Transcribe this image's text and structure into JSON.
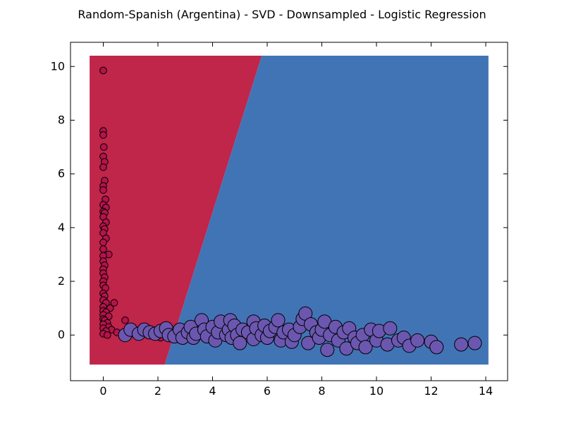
{
  "chart_data": {
    "type": "scatter",
    "title": "Random-Spanish (Argentina) - SVD - Downsampled - Logistic Regression",
    "xlabel": "",
    "ylabel": "",
    "xlim": [
      -1.2,
      14.8
    ],
    "ylim": [
      -1.7,
      10.9
    ],
    "x_ticks": [
      0,
      2,
      4,
      6,
      8,
      10,
      12,
      14
    ],
    "y_ticks": [
      0,
      2,
      4,
      6,
      8,
      10
    ],
    "grid": false,
    "decision_regions": {
      "extent": {
        "x": [
          -0.5,
          14.1
        ],
        "y": [
          -1.1,
          10.4
        ]
      },
      "boundary": [
        [
          2.25,
          -1.1
        ],
        [
          5.8,
          10.4
        ]
      ],
      "left_class_color": "#c0254a",
      "right_class_color": "#4174b5"
    },
    "series": [
      {
        "class": "red",
        "color": "#b5134a",
        "points": [
          [
            0.0,
            9.85
          ],
          [
            0.0,
            7.6
          ],
          [
            0.0,
            7.45
          ],
          [
            0.02,
            7.0
          ],
          [
            0.0,
            6.65
          ],
          [
            0.05,
            6.45
          ],
          [
            0.0,
            6.25
          ],
          [
            0.05,
            5.75
          ],
          [
            0.0,
            5.55
          ],
          [
            0.0,
            5.4
          ],
          [
            0.08,
            5.05
          ],
          [
            0.0,
            4.85
          ],
          [
            0.1,
            4.75
          ],
          [
            0.0,
            4.6
          ],
          [
            0.05,
            4.55
          ],
          [
            0.0,
            4.4
          ],
          [
            0.1,
            4.2
          ],
          [
            0.0,
            4.05
          ],
          [
            0.05,
            3.95
          ],
          [
            0.0,
            3.8
          ],
          [
            0.1,
            3.6
          ],
          [
            0.0,
            3.45
          ],
          [
            0.0,
            3.2
          ],
          [
            0.2,
            3.0
          ],
          [
            0.0,
            2.95
          ],
          [
            0.0,
            2.75
          ],
          [
            0.05,
            2.6
          ],
          [
            0.0,
            2.45
          ],
          [
            0.0,
            2.3
          ],
          [
            0.05,
            2.15
          ],
          [
            0.0,
            2.0
          ],
          [
            0.0,
            1.85
          ],
          [
            0.08,
            1.75
          ],
          [
            0.0,
            1.55
          ],
          [
            0.05,
            1.45
          ],
          [
            0.0,
            1.3
          ],
          [
            0.1,
            1.2
          ],
          [
            0.4,
            1.2
          ],
          [
            0.0,
            1.05
          ],
          [
            0.25,
            1.0
          ],
          [
            0.0,
            0.9
          ],
          [
            0.1,
            0.85
          ],
          [
            0.0,
            0.75
          ],
          [
            0.2,
            0.7
          ],
          [
            0.0,
            0.6
          ],
          [
            0.05,
            0.55
          ],
          [
            0.15,
            0.45
          ],
          [
            0.0,
            0.4
          ],
          [
            0.2,
            0.3
          ],
          [
            0.0,
            0.25
          ],
          [
            0.3,
            0.2
          ],
          [
            0.1,
            0.15
          ],
          [
            0.0,
            0.05
          ],
          [
            0.5,
            0.1
          ],
          [
            0.8,
            0.55
          ],
          [
            0.9,
            0.1
          ],
          [
            1.0,
            0.05
          ],
          [
            0.15,
            0.0
          ],
          [
            2.1,
            -0.1
          ],
          [
            5.75,
            0.05
          ]
        ]
      },
      {
        "class": "purple",
        "color": "#6b57b0",
        "points": [
          [
            0.8,
            0.0
          ],
          [
            1.0,
            0.2
          ],
          [
            1.3,
            0.05
          ],
          [
            1.5,
            0.2
          ],
          [
            1.7,
            0.1
          ],
          [
            1.9,
            0.05
          ],
          [
            2.1,
            0.15
          ],
          [
            2.3,
            0.25
          ],
          [
            2.4,
            0.0
          ],
          [
            2.6,
            -0.05
          ],
          [
            2.8,
            0.2
          ],
          [
            2.9,
            -0.1
          ],
          [
            3.1,
            0.1
          ],
          [
            3.2,
            0.3
          ],
          [
            3.3,
            -0.1
          ],
          [
            3.4,
            0.05
          ],
          [
            3.6,
            0.55
          ],
          [
            3.7,
            0.2
          ],
          [
            3.8,
            -0.05
          ],
          [
            4.0,
            0.3
          ],
          [
            4.1,
            -0.2
          ],
          [
            4.2,
            0.1
          ],
          [
            4.3,
            0.5
          ],
          [
            4.5,
            0.0
          ],
          [
            4.6,
            0.2
          ],
          [
            4.65,
            0.55
          ],
          [
            4.7,
            -0.1
          ],
          [
            4.8,
            0.35
          ],
          [
            4.9,
            0.0
          ],
          [
            5.0,
            -0.3
          ],
          [
            5.1,
            0.2
          ],
          [
            5.3,
            0.1
          ],
          [
            5.5,
            0.5
          ],
          [
            5.5,
            -0.15
          ],
          [
            5.6,
            0.25
          ],
          [
            5.8,
            0.0
          ],
          [
            5.9,
            0.35
          ],
          [
            6.0,
            -0.1
          ],
          [
            6.1,
            0.15
          ],
          [
            6.3,
            0.3
          ],
          [
            6.4,
            0.55
          ],
          [
            6.5,
            -0.2
          ],
          [
            6.6,
            0.1
          ],
          [
            6.8,
            0.2
          ],
          [
            6.9,
            -0.25
          ],
          [
            7.0,
            0.0
          ],
          [
            7.2,
            0.3
          ],
          [
            7.3,
            0.6
          ],
          [
            7.4,
            0.8
          ],
          [
            7.5,
            -0.3
          ],
          [
            7.6,
            0.4
          ],
          [
            7.8,
            0.1
          ],
          [
            7.9,
            -0.1
          ],
          [
            8.0,
            0.2
          ],
          [
            8.1,
            0.5
          ],
          [
            8.2,
            -0.55
          ],
          [
            8.3,
            0.0
          ],
          [
            8.5,
            0.3
          ],
          [
            8.6,
            -0.2
          ],
          [
            8.8,
            0.1
          ],
          [
            8.9,
            -0.5
          ],
          [
            9.0,
            0.25
          ],
          [
            9.2,
            -0.1
          ],
          [
            9.3,
            -0.3
          ],
          [
            9.5,
            0.0
          ],
          [
            9.6,
            -0.45
          ],
          [
            9.8,
            0.2
          ],
          [
            10.0,
            -0.2
          ],
          [
            10.1,
            0.15
          ],
          [
            10.4,
            -0.35
          ],
          [
            10.5,
            0.25
          ],
          [
            10.8,
            -0.2
          ],
          [
            11.0,
            -0.1
          ],
          [
            11.2,
            -0.4
          ],
          [
            11.5,
            -0.2
          ],
          [
            12.0,
            -0.25
          ],
          [
            12.2,
            -0.45
          ],
          [
            13.1,
            -0.35
          ],
          [
            13.6,
            -0.3
          ]
        ]
      }
    ]
  }
}
